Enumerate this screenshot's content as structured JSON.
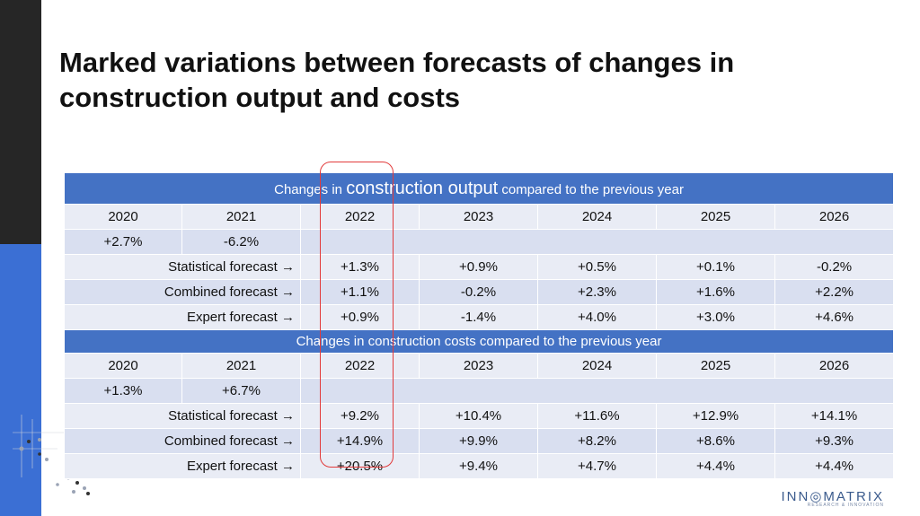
{
  "slide": {
    "title_line1": "Marked variations between forecasts of changes in",
    "title_line2": "construction output and costs"
  },
  "output_table": {
    "header_pre": "Changes in ",
    "header_big": "construction output",
    "header_post": " compared to the previous year",
    "years": [
      "2020",
      "2021",
      "2022",
      "2023",
      "2024",
      "2025",
      "2026"
    ],
    "actuals": [
      "+2.7%",
      "-6.2%"
    ],
    "rows": [
      {
        "label": "Statistical forecast →",
        "values": [
          "+1.3%",
          "+0.9%",
          "+0.5%",
          "+0.1%",
          "-0.2%"
        ]
      },
      {
        "label": "Combined forecast →",
        "values": [
          "+1.1%",
          "-0.2%",
          "+2.3%",
          "+1.6%",
          "+2.2%"
        ]
      },
      {
        "label": "Expert forecast →",
        "values": [
          "+0.9%",
          "-1.4%",
          "+4.0%",
          "+3.0%",
          "+4.6%"
        ]
      }
    ]
  },
  "cost_table": {
    "header": "Changes in construction costs compared to the previous year",
    "years": [
      "2020",
      "2021",
      "2022",
      "2023",
      "2024",
      "2025",
      "2026"
    ],
    "actuals": [
      "+1.3%",
      "+6.7%"
    ],
    "rows": [
      {
        "label": "Statistical forecast →",
        "values": [
          "+9.2%",
          "+10.4%",
          "+11.6%",
          "+12.9%",
          "+14.1%"
        ]
      },
      {
        "label": "Combined forecast →",
        "values": [
          "+14.9%",
          "+9.9%",
          "+8.2%",
          "+8.6%",
          "+9.3%"
        ]
      },
      {
        "label": "Expert forecast →",
        "values": [
          "+20.5%",
          "+9.4%",
          "+4.7%",
          "+4.4%",
          "+4.4%"
        ]
      }
    ]
  },
  "logo": {
    "name": "INN◎MATRIX",
    "tagline": "RESEARCH & INNOVATION"
  },
  "colors": {
    "header_blue": "#4472c4",
    "highlight_red": "#e23b3b",
    "sidebar_dark": "#262626",
    "sidebar_blue": "#3b6fd4"
  }
}
